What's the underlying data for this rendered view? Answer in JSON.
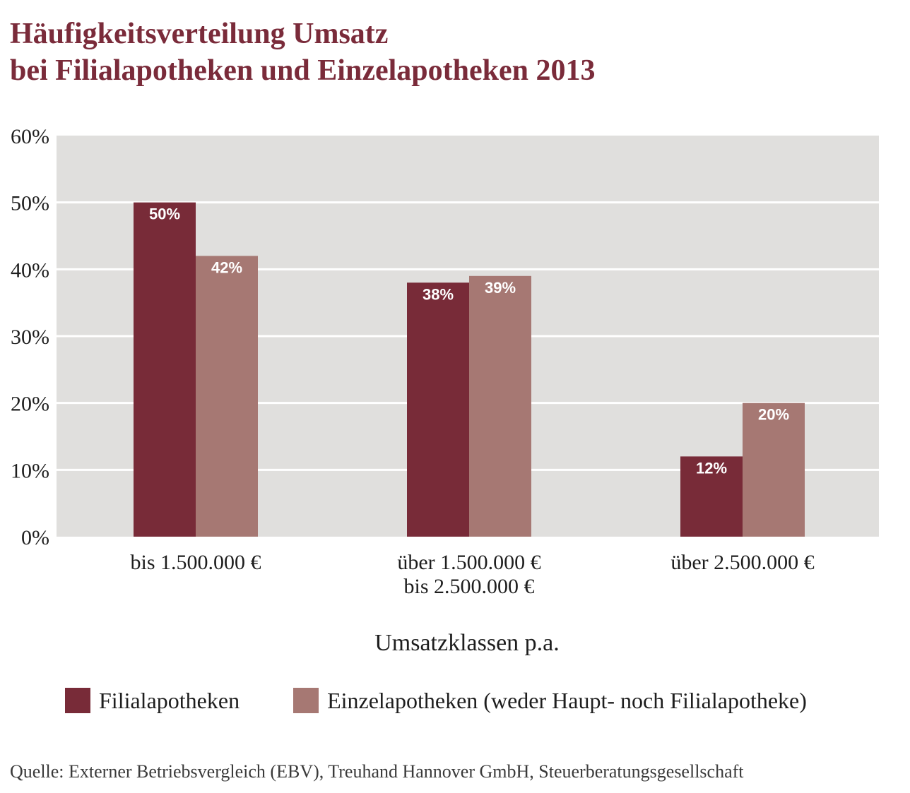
{
  "title": {
    "line1": "Häufigkeitsverteilung Umsatz",
    "line2": "bei Filialapotheken und Einzelapotheken 2013"
  },
  "colors": {
    "title": "#7a2b3a",
    "plot_background": "#e0dfdd",
    "gridline": "#ffffff",
    "series_filial": "#782b38",
    "series_einzel": "#a67873"
  },
  "chart_data": {
    "type": "bar",
    "categories": [
      [
        "bis 1.500.000 €"
      ],
      [
        "über 1.500.000 €",
        "bis 2.500.000 €"
      ],
      [
        "über 2.500.000 €"
      ]
    ],
    "series": [
      {
        "name": "Filialapotheken",
        "values": [
          50,
          38,
          12
        ],
        "labels": [
          "50%",
          "38%",
          "12%"
        ],
        "color": "#782b38"
      },
      {
        "name": "Einzelapotheken (weder Haupt- noch Filialapotheke)",
        "values": [
          42,
          39,
          20
        ],
        "labels": [
          "42%",
          "39%",
          "20%"
        ],
        "color": "#a67873"
      }
    ],
    "y_ticks": [
      "0%",
      "10%",
      "20%",
      "30%",
      "40%",
      "50%",
      "60%"
    ],
    "ylim": [
      0,
      60
    ],
    "xlabel": "Umsatzklassen p.a.",
    "grid": true,
    "legend_position": "bottom"
  },
  "source": "Quelle: Externer Betriebsvergleich (EBV), Treuhand Hannover GmbH, Steuerberatungsgesellschaft"
}
